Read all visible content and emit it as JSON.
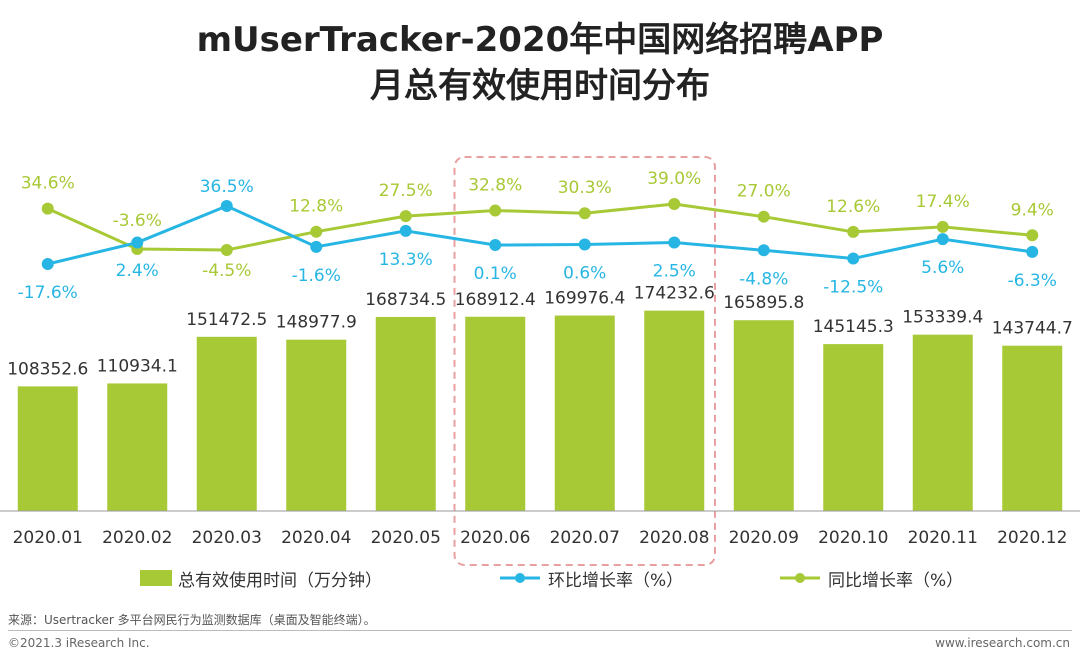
{
  "title_line1": "mUserTracker-2020年中国网络招聘APP",
  "title_line2": "月总有效使用时间分布",
  "chart_data": {
    "type": "bar",
    "categories": [
      "2020.01",
      "2020.02",
      "2020.03",
      "2020.04",
      "2020.05",
      "2020.06",
      "2020.07",
      "2020.08",
      "2020.09",
      "2020.10",
      "2020.11",
      "2020.12"
    ],
    "bar_labels": [
      "108352.6",
      "110934.1",
      "151472.5",
      "148977.9",
      "168734.5",
      "168912.4",
      "169976.4",
      "174232.6",
      "165895.8",
      "145145.3",
      "153339.4",
      "143744.7"
    ],
    "series": [
      {
        "name": "总有效使用时间（万分钟）",
        "type": "bar",
        "color": "#a8c936",
        "values": [
          108352.6,
          110934.1,
          151472.5,
          148977.9,
          168734.5,
          168912.4,
          169976.4,
          174232.6,
          165895.8,
          145145.3,
          153339.4,
          143744.7
        ]
      },
      {
        "name": "环比增长率（%）",
        "type": "line",
        "color": "#27b6e4",
        "values": [
          -17.6,
          2.4,
          36.5,
          -1.6,
          13.3,
          0.1,
          0.6,
          2.5,
          -4.8,
          -12.5,
          5.6,
          -6.3
        ],
        "labels": [
          "-17.6%",
          "2.4%",
          "36.5%",
          "-1.6%",
          "13.3%",
          "0.1%",
          "0.6%",
          "2.5%",
          "-4.8%",
          "-12.5%",
          "5.6%",
          "-6.3%"
        ]
      },
      {
        "name": "同比增长率（%）",
        "type": "line",
        "color": "#a8c936",
        "values": [
          34.6,
          -3.6,
          -4.5,
          12.8,
          27.5,
          32.8,
          30.3,
          39.0,
          27.0,
          12.6,
          17.4,
          9.4
        ],
        "labels": [
          "34.6%",
          "-3.6%",
          "-4.5%",
          "12.8%",
          "27.5%",
          "32.8%",
          "30.3%",
          "39.0%",
          "27.0%",
          "12.6%",
          "17.4%",
          "9.4%"
        ]
      }
    ],
    "highlight_categories": [
      "2020.06",
      "2020.07",
      "2020.08"
    ],
    "highlight_color": "#e8a0a0",
    "ylim": [
      0,
      200000
    ],
    "xlabel": "",
    "ylabel": ""
  },
  "legend": {
    "bar_label": "总有效使用时间（万分钟）",
    "mom_label": "环比增长率（%）",
    "yoy_label": "同比增长率（%）"
  },
  "footer": {
    "source": "来源：Usertracker 多平台网民行为监测数据库（桌面及智能终端）。",
    "copyright": "©2021.3 iResearch Inc.",
    "website": "www.iresearch.com.cn"
  }
}
